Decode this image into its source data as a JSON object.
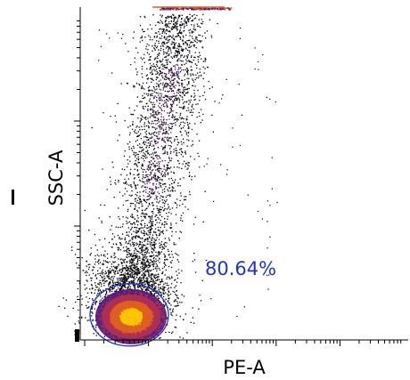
{
  "chart_data": {
    "type": "scatter",
    "title": "",
    "xlabel": "PE-A",
    "ylabel": "SSC-A",
    "x_scale": "log",
    "y_scale": "log",
    "tick_labels_shown": false,
    "grid": false,
    "legend": "none",
    "density_coloring": true,
    "density_colors": [
      "#1a0033",
      "#5a1a7a",
      "#b03050",
      "#e06020",
      "#ffcc00"
    ],
    "gate": {
      "shape": "ellipse",
      "percent_label": "80.64%",
      "color": "#2233cc"
    },
    "populations": [
      {
        "part": "main-cluster",
        "x_center": 0.155,
        "y_center": 0.06,
        "share": 0.55
      },
      {
        "part": "vertical-tail",
        "x_from": 0.15,
        "x_to": 0.34,
        "y_from": 0.12,
        "y_to": 0.98,
        "share": 0.42
      },
      {
        "part": "top-edge-saturation",
        "x_from": 0.24,
        "x_to": 0.46,
        "y": 1.0,
        "share": 0.03
      }
    ]
  }
}
